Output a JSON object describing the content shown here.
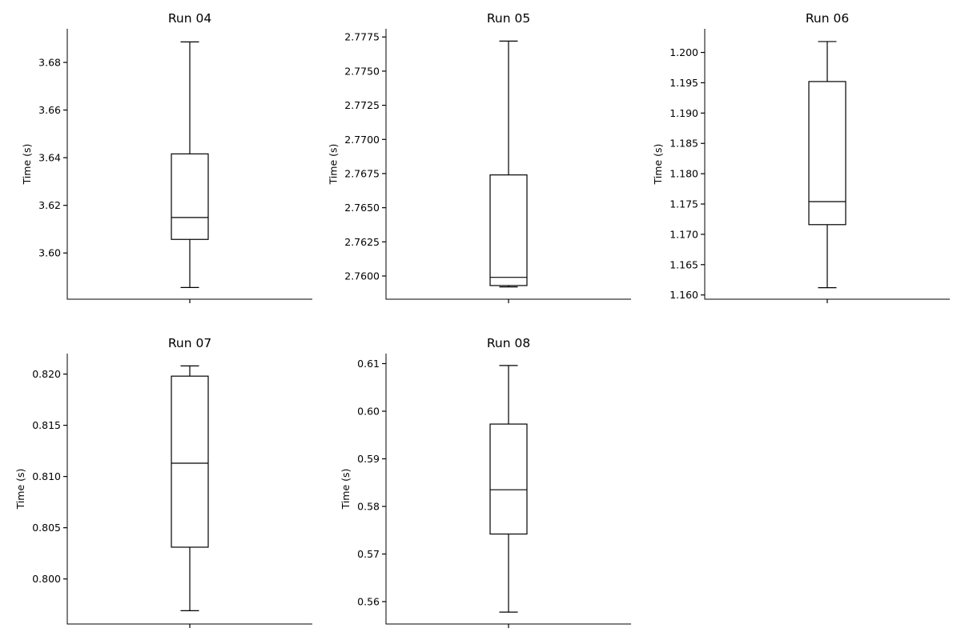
{
  "chart_data": [
    {
      "type": "box",
      "title": "Run 04",
      "ylabel": "Time (s)",
      "ylim": [
        3.5806,
        3.6941
      ],
      "yticks": [
        3.6,
        3.62,
        3.64,
        3.66,
        3.68
      ],
      "ytick_labels": [
        "3.60",
        "3.62",
        "3.64",
        "3.66",
        "3.68"
      ],
      "box": {
        "whisker_low": 3.5855,
        "q1": 3.6057,
        "median": 3.6149,
        "q3": 3.6416,
        "whisker_high": 3.6886
      }
    },
    {
      "type": "box",
      "title": "Run 05",
      "ylabel": "Time (s)",
      "ylim": [
        2.7583,
        2.7781
      ],
      "yticks": [
        2.76,
        2.7625,
        2.765,
        2.7675,
        2.77,
        2.7725,
        2.775,
        2.7775
      ],
      "ytick_labels": [
        "2.7600",
        "2.7625",
        "2.7650",
        "2.7675",
        "2.7700",
        "2.7725",
        "2.7750",
        "2.7775"
      ],
      "box": {
        "whisker_low": 2.7592,
        "q1": 2.7593,
        "median": 2.7599,
        "q3": 2.7674,
        "whisker_high": 2.7772
      }
    },
    {
      "type": "box",
      "title": "Run 06",
      "ylabel": "Time (s)",
      "ylim": [
        1.1593,
        1.2039
      ],
      "yticks": [
        1.16,
        1.165,
        1.17,
        1.175,
        1.18,
        1.185,
        1.19,
        1.195,
        1.2
      ],
      "ytick_labels": [
        "1.160",
        "1.165",
        "1.170",
        "1.175",
        "1.180",
        "1.185",
        "1.190",
        "1.195",
        "1.200"
      ],
      "box": {
        "whisker_low": 1.1612,
        "q1": 1.1716,
        "median": 1.1754,
        "q3": 1.1952,
        "whisker_high": 1.2018
      }
    },
    {
      "type": "box",
      "title": "Run 07",
      "ylabel": "Time (s)",
      "ylim": [
        0.7956,
        0.822
      ],
      "yticks": [
        0.8,
        0.805,
        0.81,
        0.815,
        0.82
      ],
      "ytick_labels": [
        "0.800",
        "0.805",
        "0.810",
        "0.815",
        "0.820"
      ],
      "box": {
        "whisker_low": 0.7969,
        "q1": 0.8031,
        "median": 0.8113,
        "q3": 0.8198,
        "whisker_high": 0.8208
      }
    },
    {
      "type": "box",
      "title": "Run 08",
      "ylabel": "Time (s)",
      "ylim": [
        0.5553,
        0.6121
      ],
      "yticks": [
        0.56,
        0.57,
        0.58,
        0.59,
        0.6,
        0.61
      ],
      "ytick_labels": [
        "0.56",
        "0.57",
        "0.58",
        "0.59",
        "0.60",
        "0.61"
      ],
      "box": {
        "whisker_low": 0.5578,
        "q1": 0.5742,
        "median": 0.5835,
        "q3": 0.5973,
        "whisker_high": 0.6096
      }
    }
  ]
}
